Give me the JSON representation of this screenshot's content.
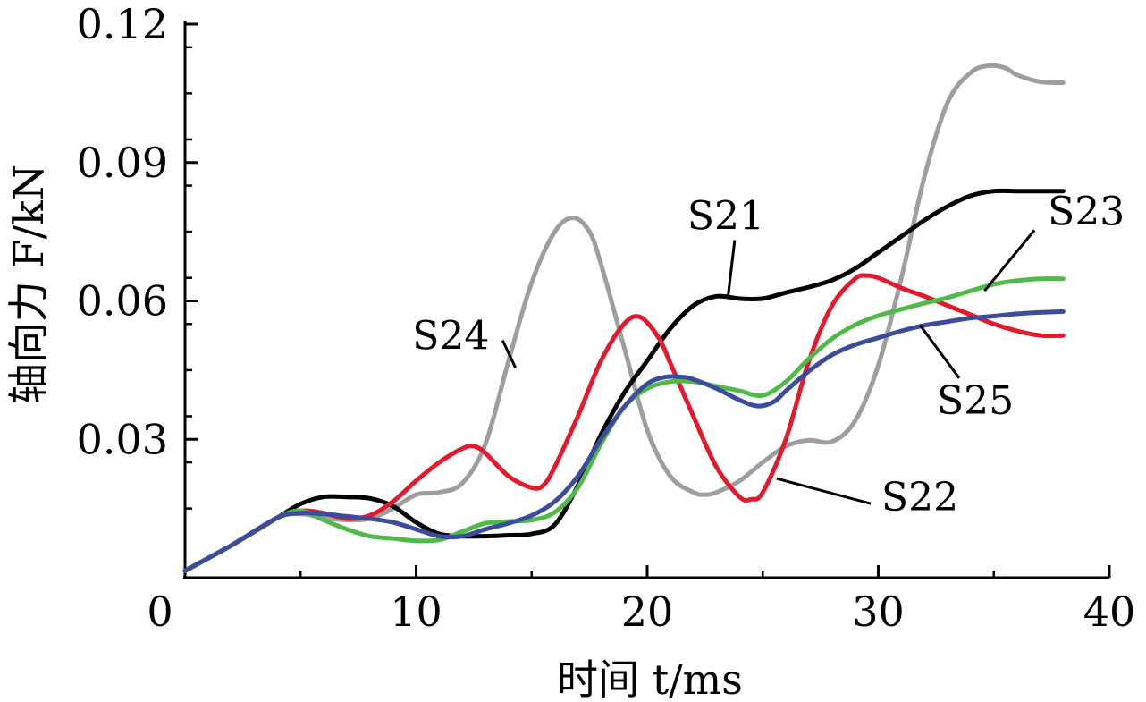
{
  "chart_data": {
    "type": "line",
    "xlabel": "时间 t/ms",
    "ylabel": "轴向力 F/kN",
    "xlim": [
      0,
      40
    ],
    "ylim": [
      0,
      0.12
    ],
    "x_ticks": [
      "0",
      "10",
      "20",
      "30",
      "40"
    ],
    "y_ticks": [
      "0.03",
      "0.06",
      "0.09",
      "0.12"
    ],
    "grid": false,
    "series": [
      {
        "name": "S21",
        "color": "#000000",
        "x": [
          0,
          2,
          4,
          5,
          6,
          7,
          8,
          9,
          10,
          11,
          12,
          13,
          14,
          15,
          16,
          17,
          18,
          19,
          20,
          21,
          22,
          23,
          24,
          25,
          26,
          27,
          28,
          29,
          30,
          31,
          32,
          33,
          34,
          35,
          36,
          37,
          38
        ],
        "y": [
          0.0015,
          0.007,
          0.013,
          0.016,
          0.0175,
          0.0175,
          0.0172,
          0.0155,
          0.012,
          0.0095,
          0.009,
          0.009,
          0.0092,
          0.0095,
          0.0115,
          0.02,
          0.031,
          0.04,
          0.047,
          0.054,
          0.059,
          0.061,
          0.0605,
          0.0605,
          0.0618,
          0.063,
          0.0645,
          0.067,
          0.0705,
          0.074,
          0.0775,
          0.0805,
          0.0828,
          0.0838,
          0.0838,
          0.0838,
          0.0838
        ]
      },
      {
        "name": "S22",
        "color": "#e31a2c",
        "x": [
          0,
          2,
          4,
          5,
          6,
          7,
          8,
          9,
          10,
          11,
          12,
          12.5,
          13,
          14,
          15,
          15.5,
          16,
          17,
          18,
          19,
          19.7,
          20.5,
          21,
          22,
          23,
          24,
          24.5,
          25,
          26,
          27,
          28,
          29,
          29.5,
          30,
          31,
          32,
          33,
          34,
          35,
          36,
          37,
          38
        ],
        "y": [
          0.0015,
          0.007,
          0.013,
          0.0145,
          0.014,
          0.0128,
          0.0135,
          0.0165,
          0.021,
          0.025,
          0.028,
          0.0285,
          0.027,
          0.022,
          0.0195,
          0.02,
          0.024,
          0.035,
          0.047,
          0.055,
          0.0565,
          0.052,
          0.0465,
          0.035,
          0.024,
          0.0175,
          0.017,
          0.0185,
          0.03,
          0.047,
          0.059,
          0.0648,
          0.0655,
          0.065,
          0.0628,
          0.061,
          0.059,
          0.057,
          0.055,
          0.0535,
          0.0525,
          0.0525
        ]
      },
      {
        "name": "S23",
        "color": "#4fba4a",
        "x": [
          0,
          2,
          4,
          5,
          6,
          7,
          8,
          9,
          10,
          11,
          12,
          13,
          14,
          15,
          16,
          17,
          18,
          19,
          20,
          21,
          22,
          23,
          24,
          25,
          26,
          27,
          28,
          29,
          30,
          31,
          32,
          33,
          34,
          35,
          36,
          37,
          38
        ],
        "y": [
          0.0015,
          0.007,
          0.013,
          0.0145,
          0.0125,
          0.0105,
          0.009,
          0.0085,
          0.008,
          0.0082,
          0.01,
          0.0118,
          0.0122,
          0.0125,
          0.0142,
          0.0195,
          0.029,
          0.037,
          0.041,
          0.0425,
          0.0425,
          0.0415,
          0.0405,
          0.0395,
          0.0425,
          0.0475,
          0.0518,
          0.0548,
          0.0568,
          0.0582,
          0.0595,
          0.0607,
          0.0622,
          0.0636,
          0.0644,
          0.0648,
          0.0648
        ]
      },
      {
        "name": "S24",
        "color": "#9e9e9e",
        "x": [
          0,
          2,
          4,
          5,
          6,
          7,
          8,
          9,
          10,
          11,
          12,
          13,
          14,
          15,
          16,
          16.8,
          17.5,
          18,
          19,
          20,
          21,
          22,
          22.5,
          23,
          24,
          25,
          26,
          27,
          28,
          29,
          30,
          31,
          32,
          33,
          34,
          34.8,
          35.5,
          36,
          37,
          38
        ],
        "y": [
          0.0015,
          0.007,
          0.013,
          0.0138,
          0.013,
          0.0125,
          0.0128,
          0.015,
          0.018,
          0.0185,
          0.0205,
          0.029,
          0.047,
          0.064,
          0.075,
          0.078,
          0.075,
          0.068,
          0.05,
          0.032,
          0.022,
          0.0185,
          0.018,
          0.0185,
          0.021,
          0.025,
          0.0285,
          0.0298,
          0.0295,
          0.034,
          0.046,
          0.065,
          0.087,
          0.103,
          0.1095,
          0.111,
          0.1105,
          0.109,
          0.1075,
          0.1073
        ]
      },
      {
        "name": "S25",
        "color": "#3c4c9c",
        "x": [
          0,
          2,
          4,
          5,
          6,
          7,
          8,
          9,
          10,
          11,
          12,
          13,
          14,
          15,
          16,
          17,
          18,
          19,
          20,
          20.8,
          21.5,
          22,
          23,
          24,
          24.8,
          25.5,
          26,
          27,
          28,
          29,
          30,
          31,
          32,
          33,
          34,
          35,
          36,
          37,
          38
        ],
        "y": [
          0.0015,
          0.007,
          0.013,
          0.014,
          0.0138,
          0.0133,
          0.0128,
          0.012,
          0.0105,
          0.009,
          0.009,
          0.0105,
          0.0118,
          0.0135,
          0.0165,
          0.022,
          0.03,
          0.037,
          0.042,
          0.0435,
          0.0435,
          0.043,
          0.041,
          0.0385,
          0.0372,
          0.0382,
          0.0405,
          0.0448,
          0.0483,
          0.0505,
          0.052,
          0.0535,
          0.0547,
          0.0555,
          0.0563,
          0.0567,
          0.0572,
          0.0575,
          0.0577
        ]
      }
    ],
    "labels": [
      {
        "text": "S21",
        "series": "S21",
        "at": [
          23.4,
          0.0755
        ],
        "tip": [
          23.5,
          0.061
        ]
      },
      {
        "text": "S22",
        "series": "S22",
        "at": [
          31.8,
          0.0145
        ],
        "tip": [
          25.6,
          0.0215
        ]
      },
      {
        "text": "S23",
        "series": "S23",
        "at": [
          39.0,
          0.0765
        ],
        "tip": [
          34.6,
          0.0622
        ]
      },
      {
        "text": "S24",
        "series": "S24",
        "at": [
          11.5,
          0.0495
        ],
        "tip": [
          14.3,
          0.0455
        ]
      },
      {
        "text": "S25",
        "series": "S25",
        "at": [
          34.2,
          0.0355
        ],
        "tip": [
          31.8,
          0.0548
        ]
      }
    ]
  }
}
